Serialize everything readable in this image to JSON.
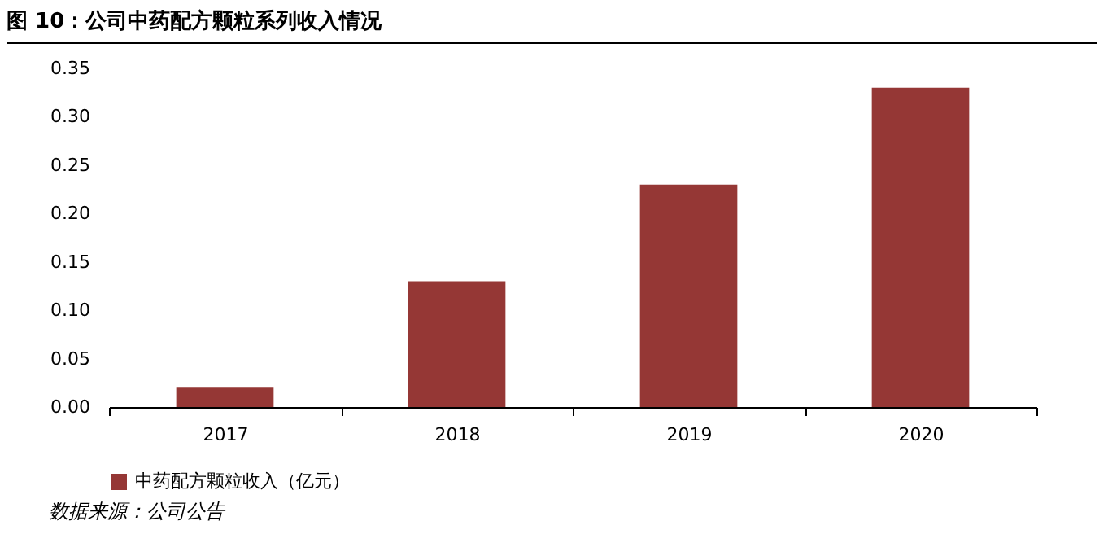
{
  "chart_data": {
    "type": "bar",
    "title": "图 10：公司中药配方颗粒系列收入情况",
    "categories": [
      "2017",
      "2018",
      "2019",
      "2020"
    ],
    "series": [
      {
        "name": "中药配方颗粒收入（亿元）",
        "color": "#953735",
        "values": [
          0.02,
          0.13,
          0.23,
          0.33
        ]
      }
    ],
    "ylim": [
      0,
      0.35
    ],
    "yticks": [
      {
        "value": 0,
        "label": "0.00"
      },
      0.05,
      {
        "value": 0.1,
        "label": "0.10"
      },
      0.15,
      {
        "value": 0.2,
        "label": "0.20"
      },
      0.25,
      {
        "value": 0.3,
        "label": "0.30"
      },
      0.35
    ],
    "grid": false,
    "legend": "bottom",
    "annotations": [
      "数据来源：公司公告"
    ]
  }
}
